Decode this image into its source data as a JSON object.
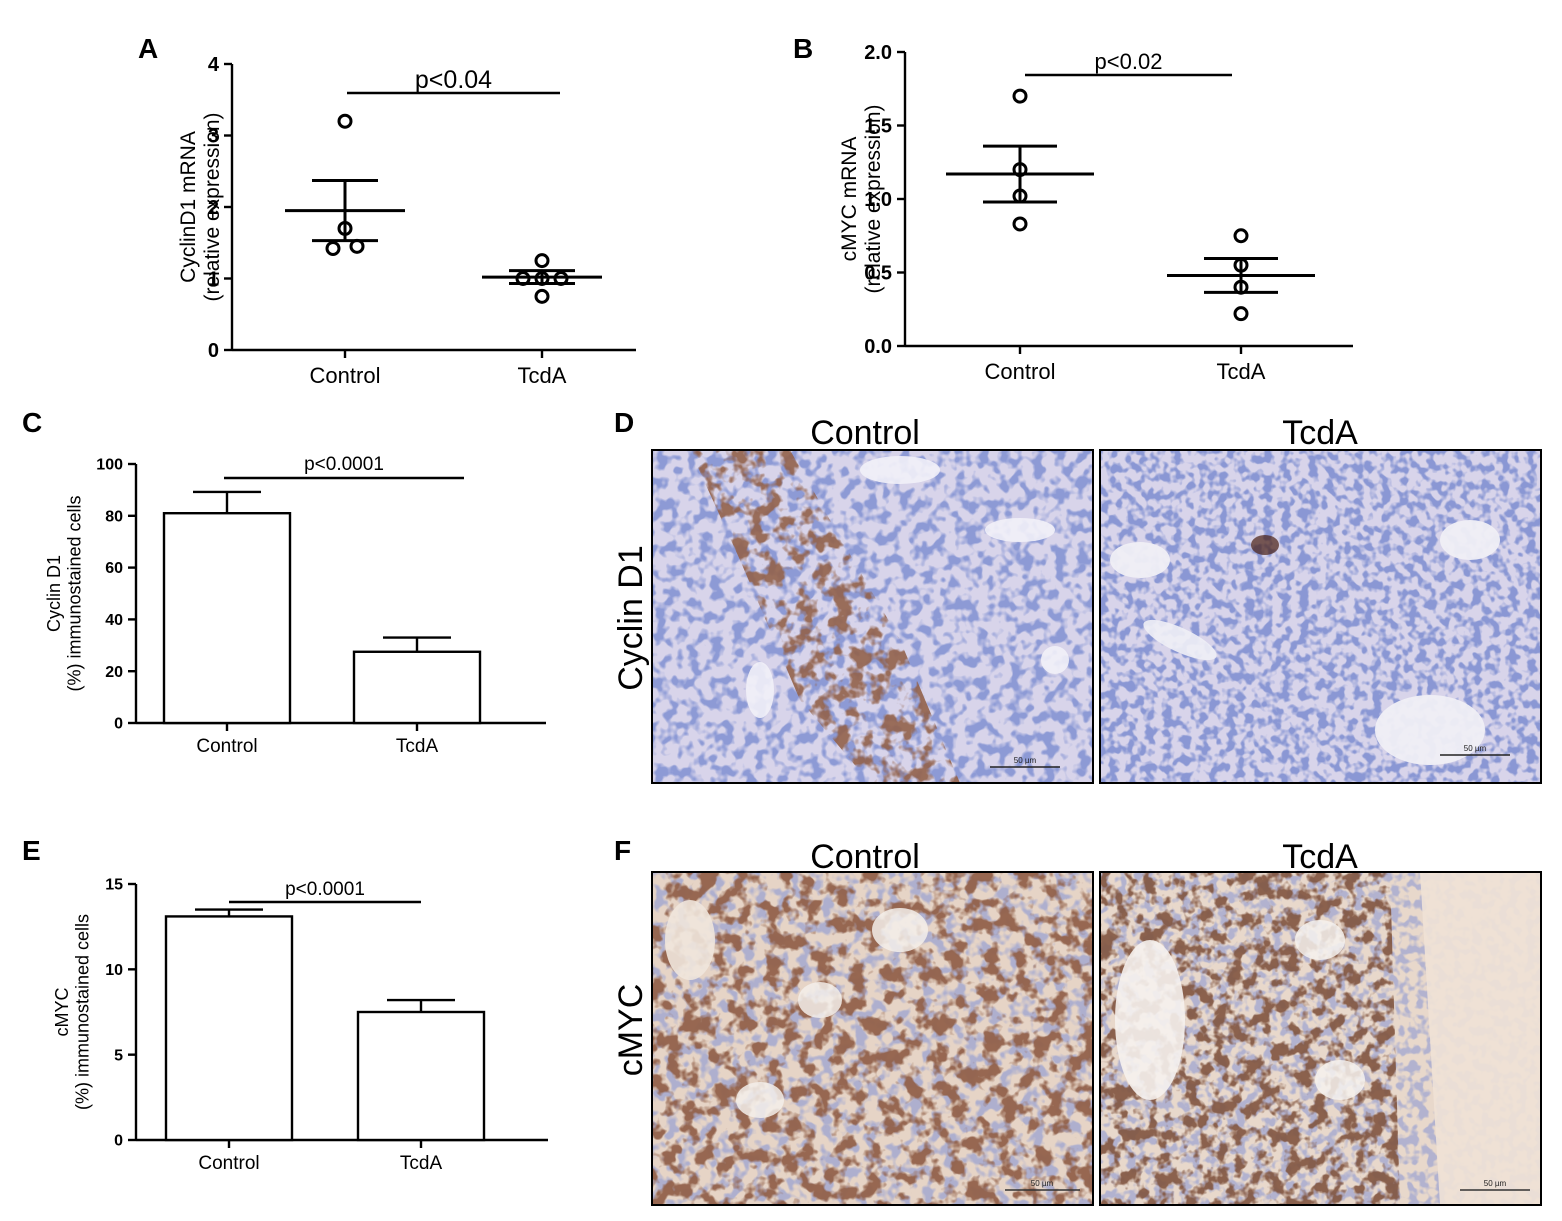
{
  "panels": {
    "A": {
      "letter": "A"
    },
    "B": {
      "letter": "B"
    },
    "C": {
      "letter": "C"
    },
    "D": {
      "letter": "D",
      "row_label": "Cyclin D1",
      "col_labels": [
        "Control",
        "TcdA"
      ],
      "scale_bar": "50 µm"
    },
    "E": {
      "letter": "E"
    },
    "F": {
      "letter": "F",
      "row_label": "cMYC",
      "col_labels": [
        "Control",
        "TcdA"
      ],
      "scale_bar": "50 µm"
    }
  },
  "colors": {
    "ink": "#000000",
    "tissue_bg": "#d9d6ea",
    "hematoxylin": "#3f4fa8",
    "dab_brown": "#4a1f12"
  },
  "chart_data": [
    {
      "id": "A",
      "type": "scatter",
      "ylabel_lines": [
        "CyclinD1 mRNA",
        "(relative expression)"
      ],
      "categories": [
        "Control",
        "TcdA"
      ],
      "ylim": [
        0,
        4
      ],
      "yticks": [
        0,
        1,
        2,
        3,
        4
      ],
      "ytick_labels": [
        "0",
        "1",
        "2",
        "3",
        "4"
      ],
      "points": [
        [
          3.2,
          1.7,
          1.45,
          1.42
        ],
        [
          1.25,
          1.0,
          1.0,
          1.0,
          0.75
        ]
      ],
      "mean": [
        1.95,
        1.02
      ],
      "sem": [
        0.42,
        0.09
      ],
      "annotation": "p<0.04"
    },
    {
      "id": "B",
      "type": "scatter",
      "ylabel_lines": [
        "cMYC mRNA",
        "(relative expression)"
      ],
      "categories": [
        "Control",
        "TcdA"
      ],
      "ylim": [
        0,
        2.0
      ],
      "yticks": [
        0,
        0.5,
        1.0,
        1.5,
        2.0
      ],
      "ytick_labels": [
        "0.0",
        "0.5",
        "1.0",
        "1.5",
        "2.0"
      ],
      "points": [
        [
          1.7,
          1.2,
          1.02,
          0.83
        ],
        [
          0.75,
          0.55,
          0.4,
          0.22
        ]
      ],
      "mean": [
        1.17,
        0.48
      ],
      "sem": [
        0.19,
        0.115
      ],
      "annotation": "p<0.02"
    },
    {
      "id": "C",
      "type": "bar",
      "ylabel_lines": [
        "Cyclin D1",
        "(%) immunostained cells"
      ],
      "categories": [
        "Control",
        "TcdA"
      ],
      "ylim": [
        0,
        100
      ],
      "yticks": [
        0,
        20,
        40,
        60,
        80,
        100
      ],
      "ytick_labels": [
        "0",
        "20",
        "40",
        "60",
        "80",
        "100"
      ],
      "values": [
        81,
        27.5
      ],
      "sem": [
        8.2,
        5.5
      ],
      "annotation": "p<0.0001"
    },
    {
      "id": "E",
      "type": "bar",
      "ylabel_lines": [
        "cMYC",
        "(%) immunostained cells"
      ],
      "categories": [
        "Control",
        "TcdA"
      ],
      "ylim": [
        0,
        15
      ],
      "yticks": [
        0,
        5,
        10,
        15
      ],
      "ytick_labels": [
        "0",
        "5",
        "10",
        "15"
      ],
      "values": [
        13.1,
        7.5
      ],
      "sem": [
        0.4,
        0.7
      ],
      "annotation": "p<0.0001"
    }
  ]
}
